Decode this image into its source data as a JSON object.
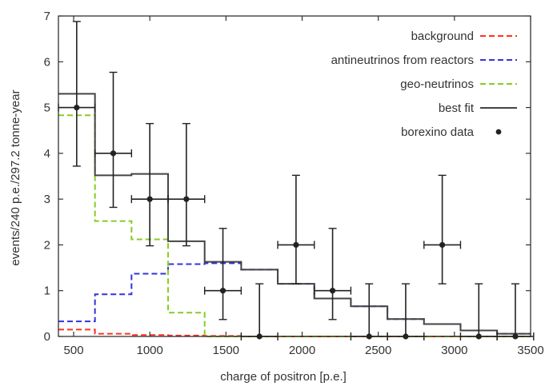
{
  "chart_data": {
    "type": "line",
    "xlabel": "charge of positron [p.e.]",
    "ylabel": "events/240 p.e./297.2 tonne-year",
    "xlim": [
      400,
      3500
    ],
    "ylim": [
      0,
      7
    ],
    "xticks": [
      500,
      1000,
      1500,
      2000,
      2500,
      3000,
      3500
    ],
    "yticks": [
      0,
      1,
      2,
      3,
      4,
      5,
      6,
      7
    ],
    "grid": false,
    "legend_position": "top-right",
    "bin_edges": [
      400,
      640,
      880,
      1120,
      1360,
      1600,
      1840,
      2080,
      2320,
      2560,
      2800,
      3040,
      3280,
      3500
    ],
    "series": [
      {
        "name": "background",
        "type": "step",
        "color": "#ff3322",
        "dash": "dashed",
        "values": [
          0.15,
          0.06,
          0.03,
          0.02,
          0.01,
          0,
          0,
          0,
          0,
          0,
          0,
          0,
          0
        ]
      },
      {
        "name": "antineutrinos from reactors",
        "type": "step",
        "color": "#3333dd",
        "dash": "dashed",
        "values": [
          0.33,
          0.92,
          1.37,
          1.58,
          1.6,
          1.46,
          1.15,
          0.83,
          0.66,
          0.38,
          0.27,
          0.13,
          0.06
        ]
      },
      {
        "name": "geo-neutrinos",
        "type": "step",
        "color": "#88cc22",
        "dash": "dashed",
        "values": [
          4.83,
          2.52,
          2.12,
          0.52,
          0,
          0,
          0,
          0,
          0,
          0,
          0,
          0,
          0
        ]
      },
      {
        "name": "best fit",
        "type": "step",
        "color": "#444444",
        "dash": "solid",
        "values": [
          5.3,
          3.52,
          3.55,
          2.08,
          1.63,
          1.46,
          1.15,
          0.83,
          0.66,
          0.38,
          0.27,
          0.13,
          0.06
        ]
      },
      {
        "name": "borexino data",
        "type": "errorbar",
        "color": "#222222",
        "points": [
          {
            "x": 520,
            "y": 5,
            "xerr": 120,
            "ylow": 3.72,
            "yhigh": 6.88
          },
          {
            "x": 760,
            "y": 4,
            "xerr": 120,
            "ylow": 2.82,
            "yhigh": 5.77
          },
          {
            "x": 1000,
            "y": 3,
            "xerr": 120,
            "ylow": 1.98,
            "yhigh": 4.65
          },
          {
            "x": 1240,
            "y": 3,
            "xerr": 120,
            "ylow": 1.98,
            "yhigh": 4.65
          },
          {
            "x": 1480,
            "y": 1,
            "xerr": 120,
            "ylow": 0.37,
            "yhigh": 2.36
          },
          {
            "x": 1720,
            "y": 0,
            "xerr": 120,
            "ylow": 0,
            "yhigh": 1.15
          },
          {
            "x": 1960,
            "y": 2,
            "xerr": 120,
            "ylow": 1.15,
            "yhigh": 3.52
          },
          {
            "x": 2200,
            "y": 1,
            "xerr": 120,
            "ylow": 0.37,
            "yhigh": 2.36
          },
          {
            "x": 2440,
            "y": 0,
            "xerr": 120,
            "ylow": 0,
            "yhigh": 1.15
          },
          {
            "x": 2680,
            "y": 0,
            "xerr": 120,
            "ylow": 0,
            "yhigh": 1.15
          },
          {
            "x": 2920,
            "y": 2,
            "xerr": 120,
            "ylow": 1.15,
            "yhigh": 3.52
          },
          {
            "x": 3160,
            "y": 0,
            "xerr": 120,
            "ylow": 0,
            "yhigh": 1.15
          },
          {
            "x": 3400,
            "y": 0,
            "xerr": 120,
            "ylow": 0,
            "yhigh": 1.15
          }
        ]
      }
    ]
  }
}
